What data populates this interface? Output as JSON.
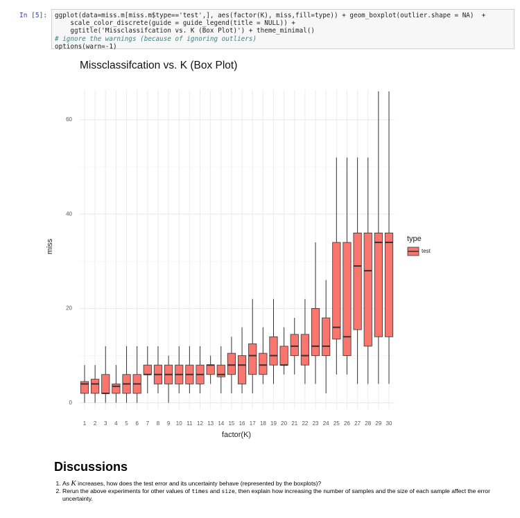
{
  "cell": {
    "prompt": "In [5]:",
    "code": [
      "ggplot(data=miss.m[miss.m$type=='test',], aes(factor(K), miss,fill=type)) + geom_boxplot(outlier.shape = NA)  +",
      "    scale_color_discrete(guide = guide_legend(title = NULL)) +",
      "    ggtitle('Missclassifcation vs. K (Box Plot)') + theme_minimal()",
      "# ignore the warnings (because of ignoring outliers)",
      "options(warn=-1)"
    ]
  },
  "chart_data": {
    "type": "box",
    "title": "Missclassifcation vs. K (Box Plot)",
    "x_label": "factor(K)",
    "y_label": "miss",
    "legend_title": "type",
    "categories": [
      "1",
      "2",
      "3",
      "4",
      "5",
      "6",
      "7",
      "8",
      "9",
      "10",
      "11",
      "12",
      "13",
      "14",
      "15",
      "16",
      "17",
      "18",
      "19",
      "20",
      "21",
      "22",
      "23",
      "24",
      "25",
      "26",
      "27",
      "28",
      "29",
      "30"
    ],
    "series": [
      {
        "name": "test",
        "color": "#f8766d",
        "values": [
          [
            0,
            2,
            4,
            4.5,
            8
          ],
          [
            0,
            2,
            4,
            5,
            8
          ],
          [
            0,
            2,
            2,
            6,
            12
          ],
          [
            0,
            2,
            3.5,
            4,
            8
          ],
          [
            0,
            2,
            4,
            6,
            12
          ],
          [
            0,
            2,
            4,
            6,
            12
          ],
          [
            2,
            6,
            6,
            8,
            12
          ],
          [
            2,
            4,
            6,
            8,
            12
          ],
          [
            0,
            4,
            6,
            8,
            10
          ],
          [
            2,
            4,
            6,
            8,
            12
          ],
          [
            2,
            4,
            6,
            8,
            12
          ],
          [
            2,
            4,
            6,
            8,
            12
          ],
          [
            4,
            6,
            8,
            8,
            10
          ],
          [
            2,
            5.5,
            6,
            8,
            12
          ],
          [
            2,
            6,
            8,
            10.5,
            14
          ],
          [
            2,
            4,
            8,
            10,
            16
          ],
          [
            2,
            6,
            10,
            12.5,
            22
          ],
          [
            4,
            6,
            8,
            10.5,
            16
          ],
          [
            4,
            8,
            10,
            14,
            22
          ],
          [
            6,
            8,
            8,
            12,
            16
          ],
          [
            6,
            10,
            12,
            14.5,
            18
          ],
          [
            4,
            8,
            10,
            14.5,
            22
          ],
          [
            4,
            10,
            12,
            20,
            34
          ],
          [
            2,
            10,
            12,
            18,
            26
          ],
          [
            6,
            13.5,
            16,
            34,
            52
          ],
          [
            6,
            10,
            14,
            34,
            52
          ],
          [
            4,
            15.5,
            29,
            36,
            52
          ],
          [
            4,
            12,
            28,
            36,
            52
          ],
          [
            4,
            14,
            34,
            36,
            66
          ],
          [
            4,
            14,
            34,
            36,
            66
          ]
        ]
      }
    ],
    "ylim": [
      -1.3,
      66.3
    ],
    "yticks": [
      0,
      20,
      40,
      60
    ],
    "grid": true,
    "legend": "right"
  },
  "discussion": {
    "heading": "Discussions",
    "items": [
      [
        "As ",
        "K",
        " increases, how does the test error and its uncertainty behave (represented by the boxplots)?"
      ],
      [
        "Rerun the above experiments for other values of ",
        "times",
        " and ",
        "size",
        ", then explain how increasing the number of samples and the size of each sample affect the error uncertainty."
      ]
    ]
  }
}
